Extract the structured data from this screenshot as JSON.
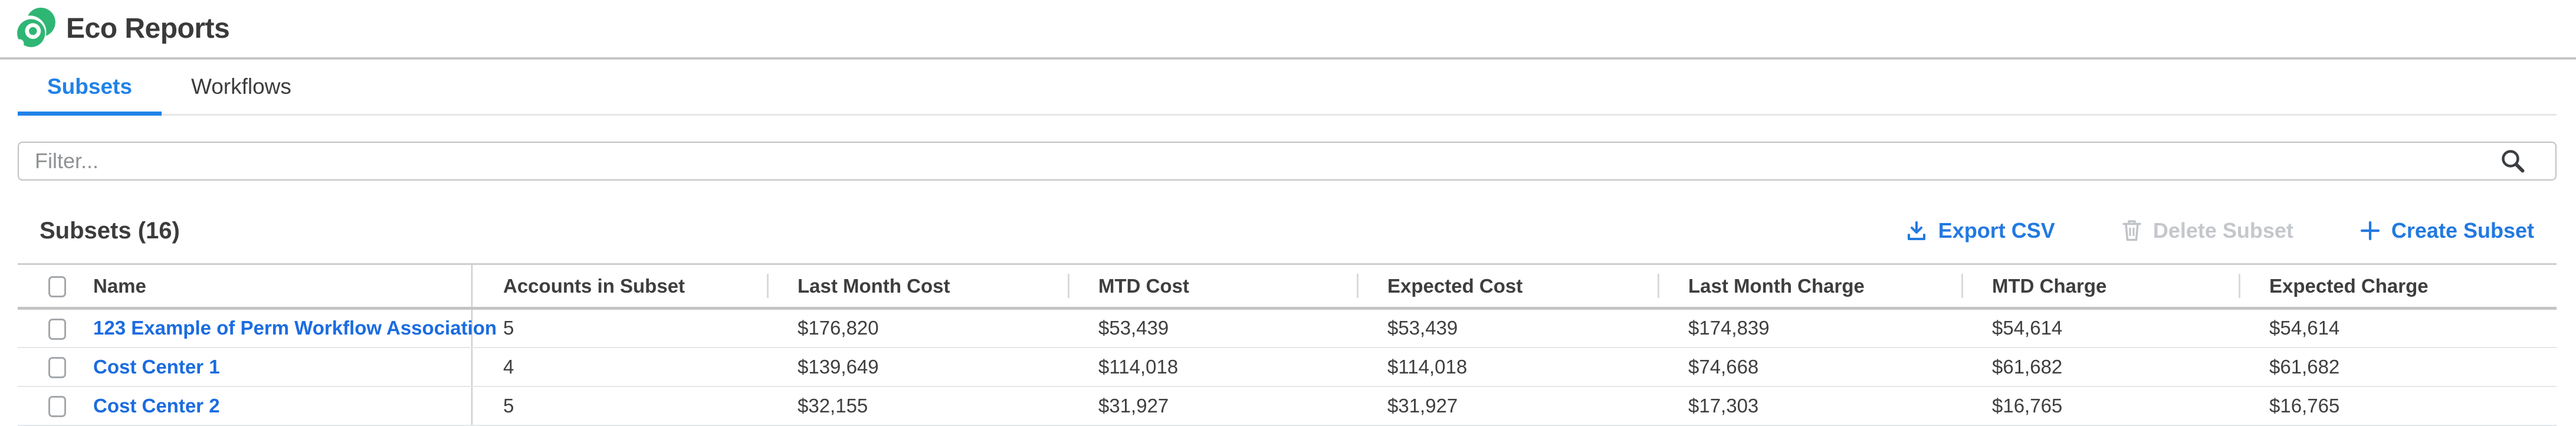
{
  "app": {
    "title": "Eco Reports",
    "logo_icon": "eco-swirl-logo"
  },
  "colors": {
    "brand_green": "#2eb674",
    "accent_blue": "#2279e0",
    "tab_active_blue": "#2082e8",
    "link_blue": "#1b6ce0",
    "disabled_gray": "#c4c7cb"
  },
  "tabs": [
    {
      "label": "Subsets",
      "active": true
    },
    {
      "label": "Workflows",
      "active": false
    }
  ],
  "filter": {
    "placeholder": "Filter...",
    "value": "",
    "icon": "search-icon"
  },
  "section": {
    "title": "Subsets (16)"
  },
  "actions": {
    "export_csv": {
      "label": "Export CSV",
      "icon": "download-icon",
      "enabled": true
    },
    "delete_subset": {
      "label": "Delete Subset",
      "icon": "trash-icon",
      "enabled": false
    },
    "create_subset": {
      "label": "Create Subset",
      "icon": "plus-icon",
      "enabled": true
    }
  },
  "table": {
    "columns": [
      {
        "key": "name",
        "label": "Name"
      },
      {
        "key": "accounts",
        "label": "Accounts in Subset"
      },
      {
        "key": "lm_cost",
        "label": "Last Month Cost"
      },
      {
        "key": "mtd_cost",
        "label": "MTD Cost"
      },
      {
        "key": "exp_cost",
        "label": "Expected Cost"
      },
      {
        "key": "lm_charge",
        "label": "Last Month Charge"
      },
      {
        "key": "mtd_charge",
        "label": "MTD Charge"
      },
      {
        "key": "exp_charge",
        "label": "Expected Charge"
      }
    ],
    "rows": [
      {
        "name": "123 Example of Perm Workflow Association",
        "accounts": "5",
        "lm_cost": "$176,820",
        "mtd_cost": "$53,439",
        "exp_cost": "$53,439",
        "lm_charge": "$174,839",
        "mtd_charge": "$54,614",
        "exp_charge": "$54,614"
      },
      {
        "name": "Cost Center 1",
        "accounts": "4",
        "lm_cost": "$139,649",
        "mtd_cost": "$114,018",
        "exp_cost": "$114,018",
        "lm_charge": "$74,668",
        "mtd_charge": "$61,682",
        "exp_charge": "$61,682"
      },
      {
        "name": "Cost Center 2",
        "accounts": "5",
        "lm_cost": "$32,155",
        "mtd_cost": "$31,927",
        "exp_cost": "$31,927",
        "lm_charge": "$17,303",
        "mtd_charge": "$16,765",
        "exp_charge": "$16,765"
      }
    ]
  }
}
